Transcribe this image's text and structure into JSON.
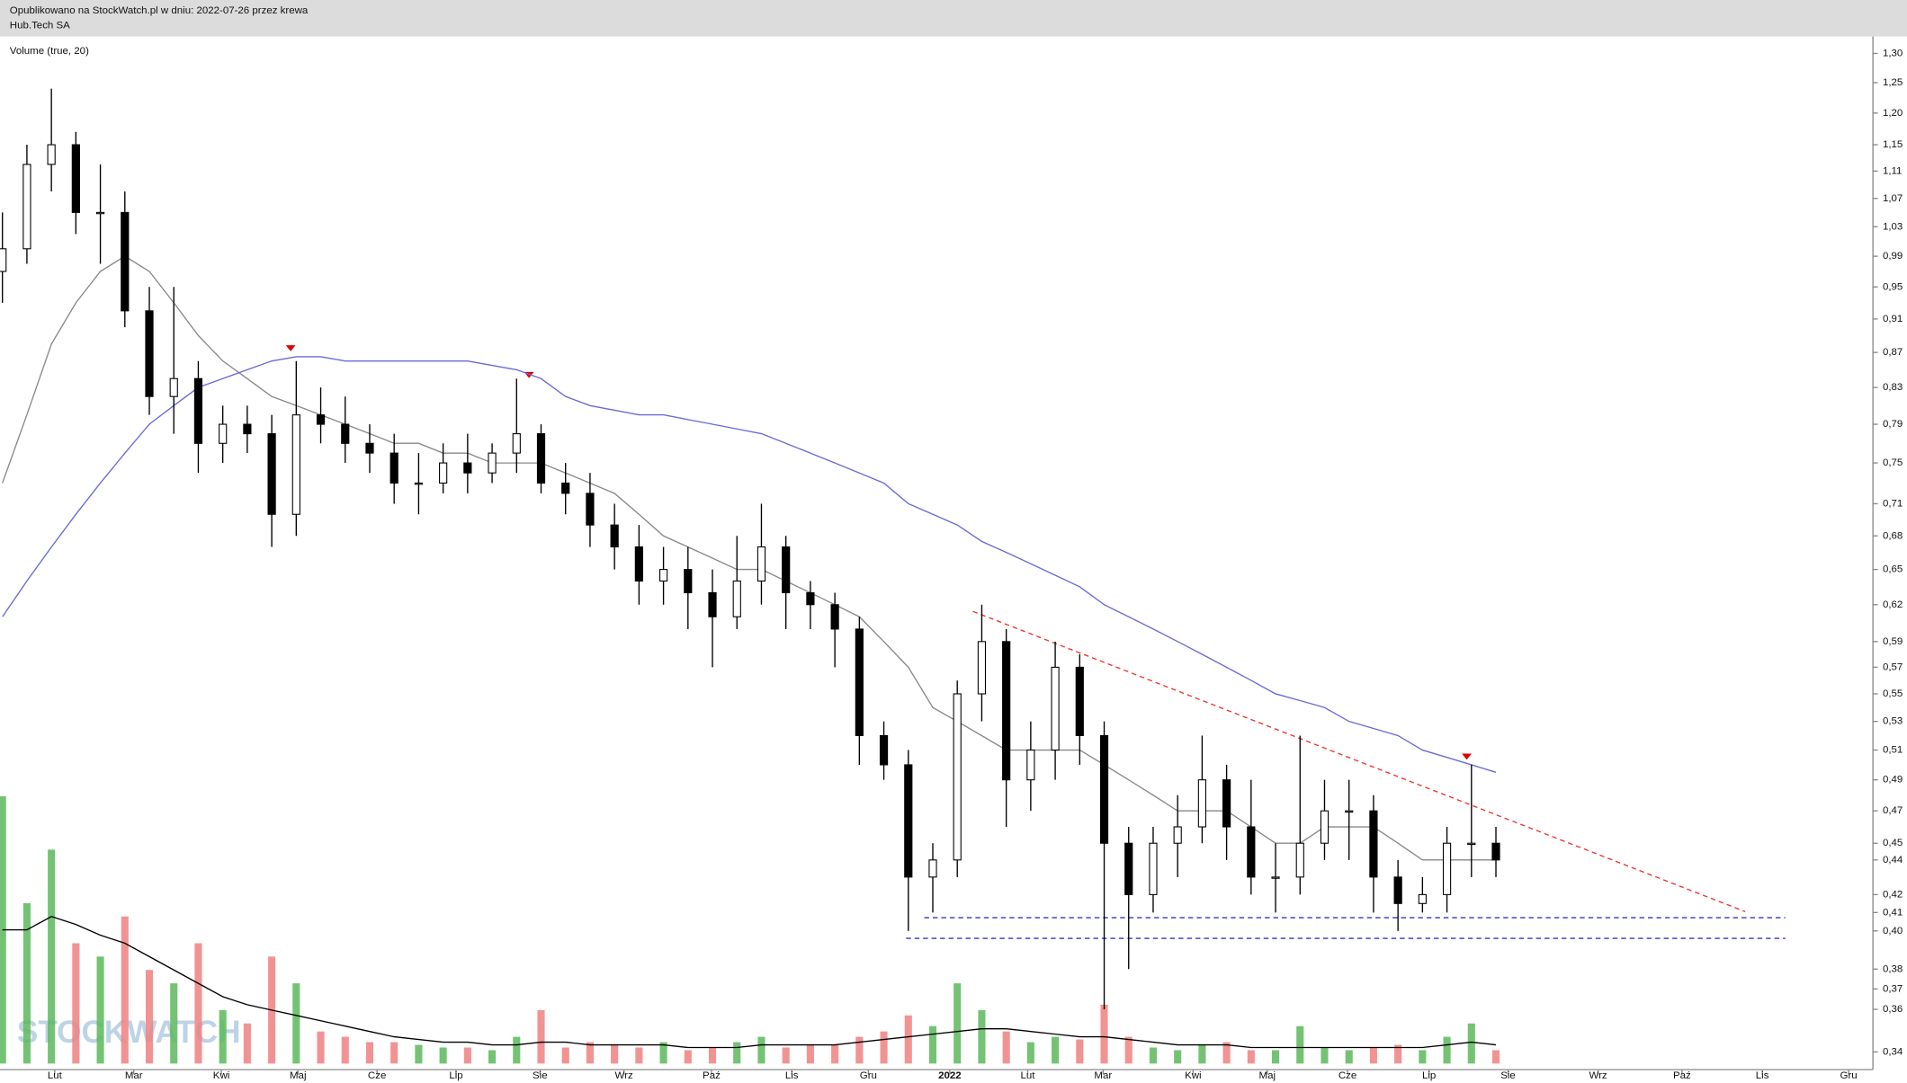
{
  "header": {
    "published": "Opublikowano na StockWatch.pl w dniu: 2022-07-26 przez krewa",
    "instrument": "Hub.Tech SA"
  },
  "chart_data": {
    "type": "candlestick",
    "indicator_label": "Volume (true, 20)",
    "watermark": "STOCKWATCH",
    "log_scale": true,
    "ylim": [
      0.332,
      1.33
    ],
    "yticks": [
      {
        "value": 1.3,
        "label": "1,30"
      },
      {
        "value": 1.25,
        "label": "1,25"
      },
      {
        "value": 1.2,
        "label": "1,20"
      },
      {
        "value": 1.15,
        "label": "1,15"
      },
      {
        "value": 1.11,
        "label": "1,11"
      },
      {
        "value": 1.07,
        "label": "1,07"
      },
      {
        "value": 1.03,
        "label": "1,03"
      },
      {
        "value": 0.99,
        "label": "0,99"
      },
      {
        "value": 0.95,
        "label": "0,95"
      },
      {
        "value": 0.91,
        "label": "0,91"
      },
      {
        "value": 0.87,
        "label": "0,87"
      },
      {
        "value": 0.83,
        "label": "0,83"
      },
      {
        "value": 0.79,
        "label": "0,79"
      },
      {
        "value": 0.75,
        "label": "0,75"
      },
      {
        "value": 0.71,
        "label": "0,71"
      },
      {
        "value": 0.68,
        "label": "0,68"
      },
      {
        "value": 0.65,
        "label": "0,65"
      },
      {
        "value": 0.62,
        "label": "0,62"
      },
      {
        "value": 0.59,
        "label": "0,59"
      },
      {
        "value": 0.57,
        "label": "0,57"
      },
      {
        "value": 0.55,
        "label": "0,55"
      },
      {
        "value": 0.53,
        "label": "0,53"
      },
      {
        "value": 0.51,
        "label": "0,51"
      },
      {
        "value": 0.49,
        "label": "0,49"
      },
      {
        "value": 0.47,
        "label": "0,47"
      },
      {
        "value": 0.45,
        "label": "0,45"
      },
      {
        "value": 0.44,
        "label": "0,44"
      },
      {
        "value": 0.42,
        "label": "0,42"
      },
      {
        "value": 0.41,
        "label": "0,41"
      },
      {
        "value": 0.4,
        "label": "0,40"
      },
      {
        "value": 0.38,
        "label": "0,38"
      },
      {
        "value": 0.37,
        "label": "0,37"
      },
      {
        "value": 0.36,
        "label": "0,36"
      },
      {
        "value": 0.34,
        "label": "0,34"
      }
    ],
    "x_labels": [
      "Lut",
      "Mar",
      "Kwi",
      "Maj",
      "Cze",
      "Lip",
      "Sie",
      "Wrz",
      "Paź",
      "Lis",
      "Gru",
      "2022",
      "Lut",
      "Mar",
      "Kwi",
      "Maj",
      "Cze",
      "Lip",
      "Sie",
      "Wrz",
      "Paź",
      "Lis",
      "Gru"
    ],
    "up_color": "#5cb85c",
    "down_color": "#f08080",
    "open": [
      0.97,
      1.0,
      1.12,
      1.15,
      1.05,
      1.05,
      0.92,
      0.82,
      0.84,
      0.77,
      0.79,
      0.78,
      0.7,
      0.8,
      0.79,
      0.77,
      0.76,
      0.73,
      0.73,
      0.75,
      0.74,
      0.76,
      0.78,
      0.73,
      0.72,
      0.69,
      0.67,
      0.64,
      0.65,
      0.63,
      0.61,
      0.64,
      0.67,
      0.63,
      0.62,
      0.6,
      0.52,
      0.5,
      0.43,
      0.44,
      0.55,
      0.59,
      0.49,
      0.51,
      0.57,
      0.52,
      0.45,
      0.42,
      0.45,
      0.46,
      0.49,
      0.46,
      0.43,
      0.43,
      0.45,
      0.47,
      0.47,
      0.43,
      0.415,
      0.42,
      0.45,
      0.45
    ],
    "high": [
      1.05,
      1.15,
      1.24,
      1.17,
      1.12,
      1.08,
      0.95,
      0.95,
      0.86,
      0.81,
      0.81,
      0.8,
      0.86,
      0.83,
      0.82,
      0.79,
      0.78,
      0.76,
      0.77,
      0.78,
      0.77,
      0.84,
      0.79,
      0.75,
      0.74,
      0.71,
      0.69,
      0.67,
      0.67,
      0.65,
      0.68,
      0.71,
      0.68,
      0.64,
      0.63,
      0.61,
      0.53,
      0.51,
      0.45,
      0.56,
      0.62,
      0.6,
      0.53,
      0.59,
      0.58,
      0.53,
      0.46,
      0.46,
      0.48,
      0.52,
      0.5,
      0.49,
      0.45,
      0.52,
      0.49,
      0.49,
      0.48,
      0.44,
      0.43,
      0.46,
      0.5,
      0.46
    ],
    "low": [
      0.93,
      0.98,
      1.08,
      1.02,
      0.98,
      0.9,
      0.8,
      0.78,
      0.74,
      0.75,
      0.76,
      0.67,
      0.68,
      0.77,
      0.75,
      0.74,
      0.71,
      0.7,
      0.72,
      0.72,
      0.73,
      0.74,
      0.72,
      0.7,
      0.67,
      0.65,
      0.62,
      0.62,
      0.6,
      0.57,
      0.6,
      0.62,
      0.6,
      0.6,
      0.57,
      0.5,
      0.49,
      0.4,
      0.41,
      0.43,
      0.53,
      0.46,
      0.47,
      0.49,
      0.5,
      0.36,
      0.38,
      0.41,
      0.43,
      0.45,
      0.44,
      0.42,
      0.41,
      0.42,
      0.44,
      0.44,
      0.41,
      0.4,
      0.41,
      0.41,
      0.43,
      0.43
    ],
    "close": [
      1.0,
      1.12,
      1.15,
      1.05,
      1.05,
      0.92,
      0.82,
      0.84,
      0.77,
      0.79,
      0.78,
      0.7,
      0.8,
      0.79,
      0.77,
      0.76,
      0.73,
      0.73,
      0.75,
      0.74,
      0.76,
      0.78,
      0.73,
      0.72,
      0.69,
      0.67,
      0.64,
      0.65,
      0.63,
      0.61,
      0.64,
      0.67,
      0.63,
      0.62,
      0.6,
      0.52,
      0.5,
      0.43,
      0.44,
      0.55,
      0.59,
      0.49,
      0.51,
      0.57,
      0.52,
      0.45,
      0.42,
      0.45,
      0.46,
      0.49,
      0.46,
      0.43,
      0.43,
      0.45,
      0.47,
      0.47,
      0.43,
      0.415,
      0.42,
      0.45,
      0.45,
      0.44
    ],
    "series": [
      {
        "color": "#888888",
        "values": [
          0.73,
          0.8,
          0.88,
          0.93,
          0.97,
          0.99,
          0.97,
          0.93,
          0.89,
          0.86,
          0.84,
          0.82,
          0.81,
          0.8,
          0.79,
          0.78,
          0.77,
          0.77,
          0.76,
          0.76,
          0.75,
          0.75,
          0.75,
          0.74,
          0.73,
          0.72,
          0.7,
          0.68,
          0.67,
          0.66,
          0.65,
          0.65,
          0.64,
          0.63,
          0.62,
          0.61,
          0.59,
          0.57,
          0.54,
          0.53,
          0.52,
          0.51,
          0.51,
          0.51,
          0.51,
          0.5,
          0.49,
          0.48,
          0.47,
          0.47,
          0.47,
          0.46,
          0.45,
          0.45,
          0.46,
          0.46,
          0.46,
          0.45,
          0.44,
          0.44,
          0.44,
          0.44
        ]
      },
      {
        "color": "#6a6ad8",
        "values": [
          0.61,
          0.64,
          0.67,
          0.7,
          0.73,
          0.76,
          0.79,
          0.81,
          0.83,
          0.84,
          0.85,
          0.86,
          0.865,
          0.865,
          0.86,
          0.86,
          0.86,
          0.86,
          0.86,
          0.86,
          0.855,
          0.85,
          0.84,
          0.82,
          0.81,
          0.805,
          0.8,
          0.8,
          0.795,
          0.79,
          0.785,
          0.78,
          0.77,
          0.76,
          0.75,
          0.74,
          0.73,
          0.71,
          0.7,
          0.69,
          0.675,
          0.665,
          0.655,
          0.645,
          0.635,
          0.62,
          0.61,
          0.6,
          0.59,
          0.58,
          0.57,
          0.56,
          0.55,
          0.545,
          0.54,
          0.53,
          0.525,
          0.52,
          0.51,
          0.505,
          0.5,
          0.495
        ]
      }
    ],
    "volume": [
      100,
      60,
      80,
      45,
      40,
      55,
      35,
      30,
      45,
      20,
      15,
      40,
      30,
      12,
      10,
      8,
      8,
      7,
      6,
      6,
      5,
      10,
      20,
      6,
      8,
      7,
      6,
      8,
      5,
      6,
      8,
      10,
      6,
      7,
      7,
      10,
      12,
      18,
      14,
      30,
      20,
      12,
      8,
      10,
      9,
      22,
      10,
      6,
      5,
      7,
      8,
      5,
      5,
      14,
      6,
      5,
      6,
      7,
      5,
      10,
      15,
      5
    ],
    "volume_ma": [
      50,
      50,
      55,
      52,
      48,
      45,
      40,
      35,
      30,
      25,
      22,
      20,
      18,
      16,
      14,
      12,
      10,
      9,
      8,
      8,
      7,
      7,
      8,
      8,
      7,
      7,
      7,
      7,
      6,
      6,
      6,
      7,
      7,
      7,
      7,
      8,
      9,
      10,
      11,
      12,
      13,
      13,
      12,
      11,
      10,
      10,
      9,
      8,
      7,
      7,
      7,
      6,
      6,
      6,
      6,
      6,
      6,
      6,
      6,
      7,
      8,
      7
    ]
  }
}
